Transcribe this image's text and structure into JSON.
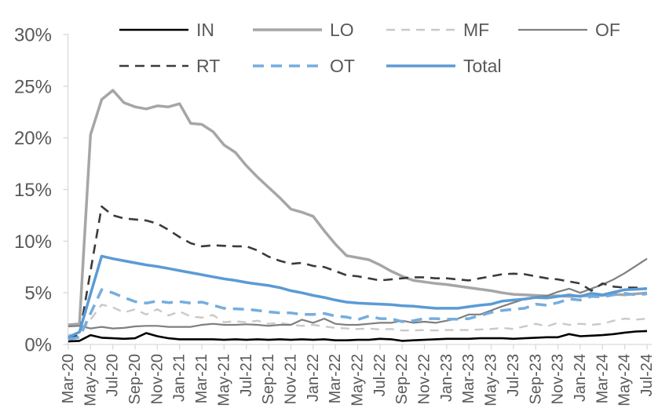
{
  "chart_data": {
    "type": "line",
    "title": "",
    "xlabel": "",
    "ylabel": "",
    "grid": false,
    "legend_position": "top",
    "axis_text_color": "#595959",
    "axis_line_color": "#D9D9D9",
    "points_per_tick": 2,
    "x_tick_labels": [
      "Mar-20",
      "May-20",
      "Jul-20",
      "Sep-20",
      "Nov-20",
      "Jan-21",
      "Mar-21",
      "May-21",
      "Jul-21",
      "Sep-21",
      "Nov-21",
      "Jan-22",
      "Mar-22",
      "May-22",
      "Jul-22",
      "Sep-22",
      "Nov-22",
      "Jan-23",
      "Mar-23",
      "May-23",
      "Jul-23",
      "Sep-23",
      "Nov-23",
      "Jan-24",
      "Mar-24",
      "May-24",
      "Jul-24"
    ],
    "y_axis": {
      "min": 0,
      "max": 30,
      "tick_step": 5,
      "tick_labels": [
        "0%",
        "5%",
        "10%",
        "15%",
        "20%",
        "25%",
        "30%"
      ]
    },
    "series": [
      {
        "name": "IN",
        "color": "#000000",
        "style": "solid",
        "width": 2.6,
        "dash": "",
        "values": [
          0.3,
          0.35,
          0.9,
          0.65,
          0.6,
          0.55,
          0.6,
          1.1,
          0.8,
          0.6,
          0.5,
          0.5,
          0.5,
          0.5,
          0.45,
          0.5,
          0.45,
          0.5,
          0.45,
          0.5,
          0.45,
          0.5,
          0.45,
          0.5,
          0.4,
          0.4,
          0.45,
          0.45,
          0.55,
          0.5,
          0.35,
          0.4,
          0.45,
          0.5,
          0.55,
          0.55,
          0.55,
          0.6,
          0.6,
          0.6,
          0.55,
          0.6,
          0.65,
          0.7,
          0.7,
          1.0,
          0.8,
          0.85,
          0.9,
          1.0,
          1.15,
          1.25,
          1.3
        ]
      },
      {
        "name": "LO",
        "color": "#A6A6A6",
        "style": "solid",
        "width": 3.5,
        "dash": "",
        "values": [
          1.9,
          2.0,
          20.3,
          23.7,
          24.6,
          23.4,
          23.0,
          22.8,
          23.1,
          23.0,
          23.3,
          21.4,
          21.3,
          20.6,
          19.3,
          18.6,
          17.3,
          16.2,
          15.2,
          14.2,
          13.1,
          12.8,
          12.4,
          11.0,
          9.7,
          8.6,
          8.4,
          8.2,
          7.7,
          7.1,
          6.6,
          6.2,
          6.05,
          5.9,
          5.8,
          5.65,
          5.5,
          5.35,
          5.2,
          5.0,
          4.85,
          4.8,
          4.75,
          4.7,
          4.7,
          4.65,
          4.7,
          4.7,
          4.75,
          4.85,
          4.8,
          4.9,
          5.0
        ]
      },
      {
        "name": "MF",
        "color": "#C9C9C9",
        "style": "dashed",
        "width": 2.4,
        "dash": "11,8",
        "values": [
          0.9,
          1.0,
          2.4,
          3.85,
          3.6,
          3.1,
          3.4,
          2.9,
          3.4,
          2.8,
          3.2,
          2.7,
          2.6,
          2.85,
          2.15,
          2.25,
          2.15,
          2.3,
          2.0,
          2.1,
          1.9,
          1.8,
          1.9,
          1.75,
          1.6,
          1.55,
          1.5,
          1.55,
          1.45,
          1.5,
          1.35,
          1.35,
          1.4,
          1.35,
          1.4,
          1.4,
          1.4,
          1.45,
          1.5,
          1.6,
          1.5,
          1.75,
          2.0,
          1.75,
          2.1,
          1.9,
          2.0,
          1.9,
          2.0,
          2.3,
          2.5,
          2.4,
          2.5
        ]
      },
      {
        "name": "OF",
        "color": "#7F7F7F",
        "style": "solid",
        "width": 2.2,
        "dash": "",
        "values": [
          1.75,
          1.8,
          1.55,
          1.7,
          1.55,
          1.6,
          1.75,
          1.8,
          1.8,
          1.7,
          1.7,
          1.7,
          1.9,
          2.0,
          1.9,
          1.9,
          1.95,
          1.9,
          1.8,
          1.9,
          1.9,
          2.4,
          2.1,
          2.5,
          2.0,
          1.9,
          1.9,
          2.0,
          2.1,
          2.1,
          2.3,
          2.1,
          2.2,
          2.1,
          2.3,
          2.5,
          2.9,
          2.9,
          3.3,
          3.7,
          4.05,
          4.4,
          4.6,
          4.7,
          5.1,
          5.4,
          5.0,
          5.4,
          5.8,
          6.3,
          6.9,
          7.6,
          8.3
        ]
      },
      {
        "name": "RT",
        "color": "#3B3B3B",
        "style": "dashed",
        "width": 2.6,
        "dash": "12,8",
        "values": [
          0.6,
          0.9,
          7.1,
          13.35,
          12.5,
          12.2,
          12.1,
          12.0,
          11.7,
          11.1,
          10.4,
          9.8,
          9.5,
          9.6,
          9.55,
          9.5,
          9.5,
          9.1,
          8.5,
          8.1,
          7.8,
          7.9,
          7.6,
          7.5,
          7.1,
          6.7,
          6.6,
          6.4,
          6.2,
          6.3,
          6.4,
          6.5,
          6.5,
          6.4,
          6.4,
          6.3,
          6.2,
          6.4,
          6.6,
          6.8,
          6.85,
          6.8,
          6.6,
          6.4,
          6.3,
          6.1,
          5.9,
          5.2,
          5.9,
          5.6,
          5.5,
          5.5,
          5.4
        ]
      },
      {
        "name": "OT",
        "color": "#75ADDE",
        "style": "dashed",
        "width": 3.5,
        "dash": "14,9",
        "values": [
          0.5,
          0.7,
          3.0,
          5.3,
          5.0,
          4.55,
          4.15,
          4.0,
          4.2,
          4.05,
          4.15,
          4.0,
          4.1,
          3.8,
          3.5,
          3.45,
          3.4,
          3.3,
          3.15,
          3.05,
          3.05,
          2.9,
          2.9,
          3.0,
          2.75,
          2.65,
          2.4,
          2.75,
          2.5,
          2.5,
          2.2,
          2.3,
          2.5,
          2.5,
          2.45,
          2.45,
          2.5,
          2.8,
          3.1,
          3.3,
          3.4,
          3.5,
          3.9,
          3.8,
          4.05,
          4.4,
          4.3,
          4.65,
          4.6,
          4.8,
          4.95,
          4.8,
          4.9
        ]
      },
      {
        "name": "Total",
        "color": "#5B9BD5",
        "style": "solid",
        "width": 3.5,
        "dash": "",
        "values": [
          0.7,
          1.2,
          4.9,
          8.55,
          8.3,
          8.1,
          7.9,
          7.7,
          7.55,
          7.35,
          7.15,
          6.95,
          6.75,
          6.55,
          6.35,
          6.2,
          6.0,
          5.85,
          5.7,
          5.5,
          5.2,
          5.0,
          4.75,
          4.55,
          4.3,
          4.1,
          4.0,
          3.95,
          3.9,
          3.85,
          3.75,
          3.7,
          3.6,
          3.5,
          3.5,
          3.5,
          3.65,
          3.8,
          3.9,
          4.2,
          4.3,
          4.4,
          4.55,
          4.5,
          4.65,
          4.8,
          4.65,
          4.95,
          4.8,
          5.05,
          5.3,
          5.35,
          5.4
        ]
      }
    ]
  }
}
